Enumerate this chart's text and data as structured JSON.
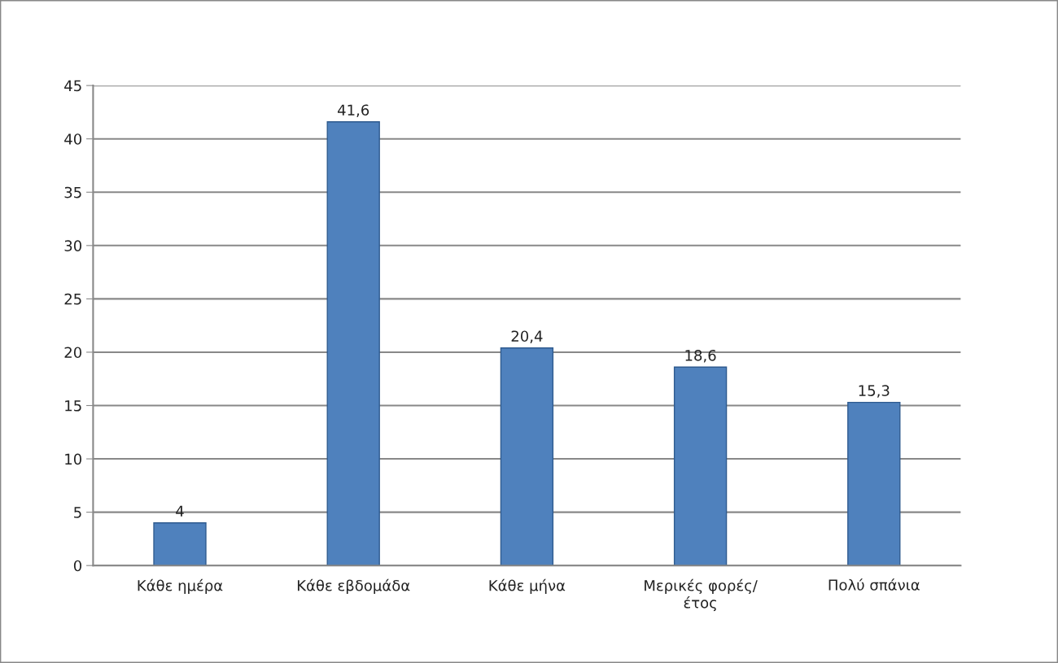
{
  "chart_data": {
    "type": "bar",
    "categories": [
      "Κάθε ημέρα",
      "Κάθε εβδομάδα",
      "Κάθε μήνα",
      "Μερικές φορές/\nέτος",
      "Πολύ σπάνια"
    ],
    "values": [
      4,
      41.6,
      20.4,
      18.6,
      15.3
    ],
    "value_labels": [
      "4",
      "41,6",
      "20,4",
      "18,6",
      "15,3"
    ],
    "color": "#4f81bd",
    "ylim": [
      0,
      45
    ],
    "yticks": [
      0,
      5,
      10,
      15,
      20,
      25,
      30,
      35,
      40,
      45
    ],
    "grid": "y"
  }
}
